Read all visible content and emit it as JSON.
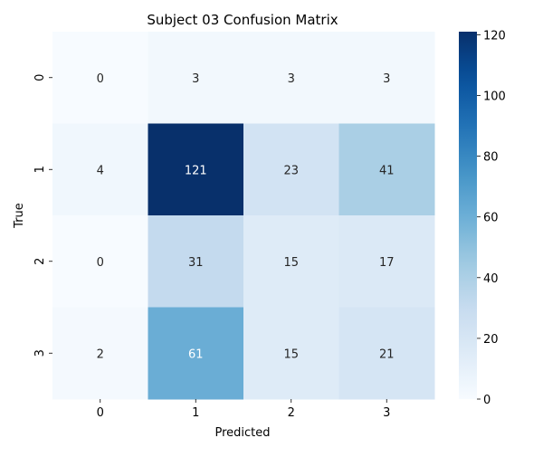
{
  "chart_data": {
    "type": "heatmap",
    "title": "Subject 03 Confusion Matrix",
    "xlabel": "Predicted",
    "ylabel": "True",
    "x_categories": [
      "0",
      "1",
      "2",
      "3"
    ],
    "y_categories": [
      "0",
      "1",
      "2",
      "3"
    ],
    "values": [
      [
        0,
        3,
        3,
        3
      ],
      [
        4,
        121,
        23,
        41
      ],
      [
        0,
        31,
        15,
        17
      ],
      [
        2,
        61,
        15,
        21
      ]
    ],
    "colormap": "Blues",
    "value_range": [
      0,
      121
    ],
    "colorbar_ticks": [
      "0",
      "20",
      "40",
      "60",
      "80",
      "100",
      "120"
    ],
    "grid": false
  }
}
